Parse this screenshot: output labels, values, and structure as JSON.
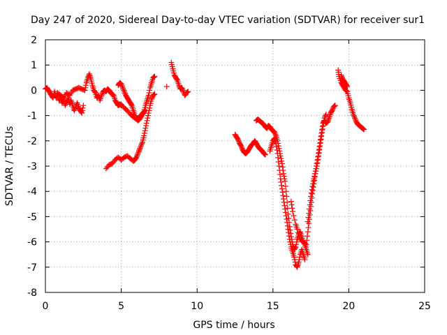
{
  "chart_data": {
    "type": "scatter",
    "title": "Day 247 of 2020, Sidereal Day-to-day VTEC variation (SDTVAR) for receiver sur1",
    "xlabel": "GPS time / hours",
    "ylabel": "SDTVAR / TECUs",
    "xlim": [
      0,
      25
    ],
    "ylim": [
      -8,
      2
    ],
    "xticks": [
      0,
      5,
      10,
      15,
      20,
      25
    ],
    "yticks": [
      -8,
      -7,
      -6,
      -5,
      -4,
      -3,
      -2,
      -1,
      0,
      1,
      2
    ],
    "grid": true,
    "marker": "+",
    "color": "#ff0000",
    "series": [
      {
        "name": "sur1",
        "segments": [
          [
            [
              0.0,
              0.05
            ],
            [
              0.1,
              0.1
            ],
            [
              0.2,
              0.0
            ],
            [
              0.3,
              -0.1
            ],
            [
              0.4,
              -0.2
            ],
            [
              0.5,
              -0.3
            ],
            [
              0.6,
              -0.05
            ],
            [
              0.7,
              -0.3
            ],
            [
              0.8,
              -0.15
            ],
            [
              0.9,
              -0.4
            ],
            [
              1.0,
              -0.3
            ],
            [
              1.1,
              -0.5
            ],
            [
              1.2,
              -0.35
            ],
            [
              1.3,
              -0.6
            ],
            [
              1.4,
              -0.45
            ],
            [
              1.5,
              -0.3
            ],
            [
              1.6,
              -0.55
            ],
            [
              1.7,
              -0.4
            ],
            [
              1.8,
              -0.6
            ],
            [
              1.9,
              -0.8
            ],
            [
              2.0,
              -0.65
            ],
            [
              2.1,
              -0.5
            ],
            [
              2.2,
              -0.7
            ],
            [
              2.3,
              -0.8
            ],
            [
              2.4,
              -0.9
            ],
            [
              2.5,
              -0.6
            ]
          ],
          [
            [
              0.8,
              -0.1
            ],
            [
              1.0,
              -0.2
            ],
            [
              1.2,
              -0.3
            ],
            [
              1.4,
              -0.1
            ],
            [
              1.6,
              -0.2
            ],
            [
              1.8,
              0.0
            ],
            [
              2.0,
              0.05
            ],
            [
              2.2,
              0.1
            ],
            [
              2.4,
              0.05
            ],
            [
              2.6,
              0.0
            ],
            [
              2.7,
              0.3
            ],
            [
              2.8,
              0.5
            ],
            [
              2.9,
              0.65
            ],
            [
              3.0,
              0.45
            ],
            [
              3.1,
              0.2
            ],
            [
              3.2,
              0.0
            ],
            [
              3.3,
              -0.1
            ],
            [
              3.4,
              -0.3
            ],
            [
              3.5,
              -0.2
            ],
            [
              3.6,
              -0.4
            ],
            [
              3.7,
              -0.2
            ],
            [
              3.8,
              -0.05
            ],
            [
              3.9,
              0.0
            ],
            [
              4.0,
              -0.05
            ],
            [
              4.1,
              0.05
            ],
            [
              4.2,
              0.0
            ],
            [
              4.3,
              -0.1
            ],
            [
              4.4,
              -0.15
            ],
            [
              4.5,
              -0.2
            ],
            [
              4.6,
              -0.4
            ],
            [
              4.7,
              -0.5
            ],
            [
              4.8,
              -0.6
            ],
            [
              4.9,
              -0.55
            ],
            [
              5.0,
              -0.6
            ]
          ],
          [
            [
              4.8,
              0.2
            ],
            [
              4.9,
              0.3
            ],
            [
              5.0,
              0.25
            ],
            [
              5.1,
              0.1
            ],
            [
              5.2,
              -0.05
            ],
            [
              5.3,
              -0.2
            ],
            [
              5.4,
              -0.3
            ],
            [
              5.5,
              -0.4
            ],
            [
              5.6,
              -0.5
            ],
            [
              5.7,
              -0.6
            ],
            [
              5.8,
              -0.8
            ],
            [
              5.9,
              -1.0
            ],
            [
              6.0,
              -1.1
            ],
            [
              6.1,
              -1.2
            ],
            [
              6.2,
              -1.15
            ],
            [
              6.3,
              -1.05
            ],
            [
              6.4,
              -0.95
            ],
            [
              6.5,
              -0.85
            ],
            [
              6.6,
              -0.6
            ],
            [
              6.7,
              -0.4
            ],
            [
              6.8,
              -0.2
            ],
            [
              6.9,
              0.1
            ],
            [
              7.0,
              0.3
            ],
            [
              7.1,
              0.5
            ],
            [
              7.2,
              0.55
            ]
          ],
          [
            [
              4.0,
              -3.1
            ],
            [
              4.2,
              -2.95
            ],
            [
              4.4,
              -2.9
            ],
            [
              4.6,
              -2.75
            ],
            [
              4.8,
              -2.65
            ],
            [
              5.0,
              -2.75
            ],
            [
              5.2,
              -2.65
            ],
            [
              5.4,
              -2.6
            ],
            [
              5.6,
              -2.7
            ],
            [
              5.8,
              -2.8
            ],
            [
              5.9,
              -2.75
            ],
            [
              6.0,
              -2.65
            ],
            [
              6.1,
              -2.5
            ],
            [
              6.2,
              -2.35
            ],
            [
              6.3,
              -2.2
            ],
            [
              6.4,
              -2.05
            ],
            [
              6.5,
              -1.8
            ],
            [
              6.6,
              -1.5
            ],
            [
              6.7,
              -1.2
            ],
            [
              6.8,
              -0.9
            ],
            [
              6.9,
              -0.6
            ],
            [
              7.0,
              -0.35
            ],
            [
              7.1,
              -0.2
            ],
            [
              7.2,
              -0.15
            ]
          ],
          [
            [
              5.0,
              -0.55
            ],
            [
              5.2,
              -0.7
            ],
            [
              5.4,
              -0.8
            ],
            [
              5.6,
              -0.95
            ],
            [
              5.8,
              -1.05
            ],
            [
              6.0,
              -1.15
            ],
            [
              6.2,
              -1.05
            ],
            [
              6.4,
              -0.9
            ],
            [
              6.6,
              -0.8
            ]
          ],
          [
            [
              8.0,
              0.15
            ]
          ],
          [
            [
              8.3,
              1.1
            ],
            [
              8.4,
              0.85
            ],
            [
              8.5,
              0.6
            ],
            [
              8.6,
              0.5
            ],
            [
              8.7,
              0.4
            ],
            [
              8.8,
              0.2
            ],
            [
              8.9,
              0.05
            ],
            [
              9.0,
              0.1
            ],
            [
              9.1,
              -0.05
            ],
            [
              9.2,
              -0.2
            ],
            [
              9.3,
              -0.1
            ],
            [
              9.4,
              -0.05
            ]
          ],
          [
            [
              12.5,
              -1.75
            ],
            [
              12.6,
              -1.85
            ],
            [
              12.7,
              -1.95
            ],
            [
              12.8,
              -2.1
            ],
            [
              12.9,
              -2.2
            ],
            [
              13.0,
              -2.35
            ],
            [
              13.1,
              -2.45
            ],
            [
              13.2,
              -2.5
            ],
            [
              13.3,
              -2.45
            ],
            [
              13.4,
              -2.35
            ],
            [
              13.5,
              -2.25
            ],
            [
              13.6,
              -2.15
            ],
            [
              13.7,
              -2.1
            ],
            [
              13.8,
              -2.0
            ],
            [
              13.9,
              -2.1
            ],
            [
              14.0,
              -2.2
            ],
            [
              14.1,
              -2.3
            ],
            [
              14.2,
              -2.35
            ],
            [
              14.3,
              -2.4
            ],
            [
              14.4,
              -2.5
            ],
            [
              14.5,
              -2.55
            ]
          ],
          [
            [
              13.9,
              -1.2
            ],
            [
              14.0,
              -1.15
            ],
            [
              14.1,
              -1.2
            ],
            [
              14.2,
              -1.25
            ],
            [
              14.3,
              -1.3
            ],
            [
              14.4,
              -1.35
            ],
            [
              14.5,
              -1.45
            ],
            [
              14.6,
              -1.5
            ],
            [
              14.7,
              -1.4
            ],
            [
              14.8,
              -1.45
            ],
            [
              14.9,
              -1.55
            ],
            [
              15.0,
              -1.6
            ],
            [
              15.1,
              -1.65
            ],
            [
              15.2,
              -1.8
            ],
            [
              15.3,
              -2.0
            ],
            [
              15.4,
              -2.3
            ],
            [
              15.5,
              -2.6
            ],
            [
              15.6,
              -2.9
            ],
            [
              15.7,
              -3.3
            ],
            [
              15.8,
              -3.6
            ],
            [
              15.9,
              -4.2
            ],
            [
              16.0,
              -4.9
            ],
            [
              16.1,
              -5.4
            ],
            [
              16.2,
              -5.8
            ],
            [
              16.3,
              -6.1
            ],
            [
              16.4,
              -6.3
            ],
            [
              16.5,
              -6.2
            ],
            [
              16.6,
              -5.9
            ],
            [
              16.7,
              -5.7
            ],
            [
              16.8,
              -5.6
            ],
            [
              16.9,
              -5.8
            ],
            [
              17.0,
              -6.0
            ],
            [
              17.1,
              -6.1
            ],
            [
              17.2,
              -6.3
            ],
            [
              17.3,
              -6.5
            ]
          ],
          [
            [
              14.8,
              -2.4
            ],
            [
              14.9,
              -2.2
            ],
            [
              15.0,
              -2.0
            ],
            [
              15.1,
              -1.9
            ],
            [
              15.2,
              -2.1
            ],
            [
              15.3,
              -2.5
            ],
            [
              15.4,
              -3.0
            ],
            [
              15.5,
              -3.5
            ],
            [
              15.6,
              -3.9
            ],
            [
              15.7,
              -4.3
            ],
            [
              15.8,
              -4.7
            ],
            [
              15.9,
              -5.1
            ],
            [
              16.0,
              -5.5
            ],
            [
              16.1,
              -5.9
            ],
            [
              16.2,
              -6.2
            ],
            [
              16.3,
              -6.4
            ],
            [
              16.4,
              -6.6
            ],
            [
              16.5,
              -6.9
            ],
            [
              16.6,
              -7.0
            ],
            [
              16.7,
              -6.8
            ],
            [
              16.8,
              -6.5
            ],
            [
              16.9,
              -6.3
            ],
            [
              17.0,
              -6.5
            ],
            [
              17.1,
              -6.7
            ]
          ],
          [
            [
              16.2,
              -4.4
            ],
            [
              16.3,
              -4.8
            ],
            [
              16.5,
              -5.3
            ],
            [
              16.6,
              -5.5
            ],
            [
              16.8,
              -5.9
            ],
            [
              17.0,
              -6.0
            ],
            [
              17.2,
              -6.1
            ],
            [
              17.3,
              -5.6
            ],
            [
              17.4,
              -5.1
            ],
            [
              17.5,
              -4.6
            ],
            [
              17.6,
              -4.1
            ],
            [
              17.7,
              -3.7
            ],
            [
              17.8,
              -3.3
            ],
            [
              17.9,
              -3.0
            ],
            [
              18.0,
              -2.6
            ],
            [
              18.1,
              -2.2
            ],
            [
              18.2,
              -1.8
            ],
            [
              18.3,
              -1.4
            ],
            [
              18.4,
              -1.1
            ],
            [
              18.5,
              -0.95
            ]
          ],
          [
            [
              17.3,
              -5.2
            ],
            [
              17.4,
              -4.7
            ],
            [
              17.5,
              -4.2
            ],
            [
              17.6,
              -3.8
            ],
            [
              17.7,
              -3.5
            ],
            [
              17.8,
              -3.2
            ],
            [
              17.9,
              -2.9
            ],
            [
              18.0,
              -2.5
            ],
            [
              18.1,
              -2.1
            ],
            [
              18.2,
              -1.7
            ],
            [
              18.3,
              -1.3
            ],
            [
              18.4,
              -1.2
            ],
            [
              18.5,
              -1.3
            ],
            [
              18.6,
              -1.25
            ],
            [
              18.7,
              -1.1
            ],
            [
              18.8,
              -0.9
            ],
            [
              18.9,
              -0.8
            ],
            [
              19.0,
              -0.65
            ],
            [
              19.1,
              -0.6
            ]
          ],
          [
            [
              19.3,
              0.8
            ],
            [
              19.35,
              0.55
            ],
            [
              19.5,
              0.3
            ],
            [
              19.6,
              0.2
            ],
            [
              19.7,
              0.1
            ],
            [
              19.8,
              0.0
            ],
            [
              19.9,
              -0.05
            ],
            [
              20.0,
              -0.3
            ],
            [
              20.1,
              -0.5
            ],
            [
              20.2,
              -0.75
            ],
            [
              20.3,
              -0.95
            ],
            [
              20.4,
              -1.1
            ],
            [
              20.5,
              -1.25
            ],
            [
              20.6,
              -1.35
            ],
            [
              20.7,
              -1.4
            ],
            [
              20.8,
              -1.45
            ],
            [
              20.9,
              -1.5
            ],
            [
              21.0,
              -1.55
            ]
          ],
          [
            [
              19.5,
              0.6
            ],
            [
              19.6,
              0.45
            ],
            [
              19.7,
              0.35
            ],
            [
              19.8,
              0.25
            ],
            [
              19.9,
              0.15
            ]
          ]
        ]
      }
    ]
  }
}
